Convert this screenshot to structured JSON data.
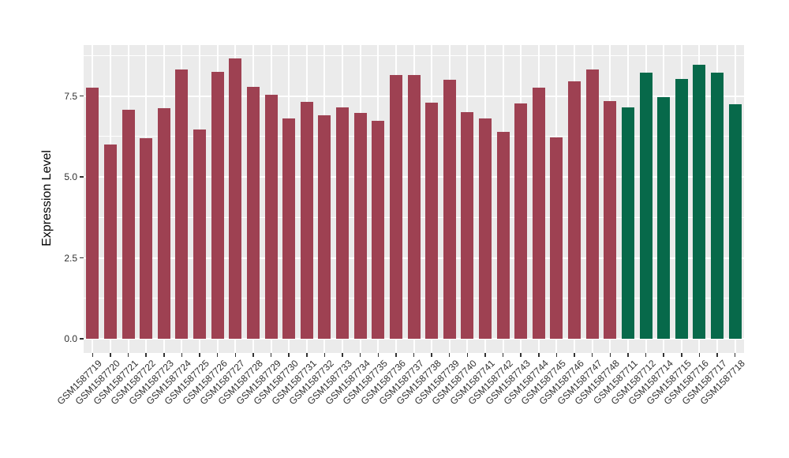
{
  "chart_data": {
    "type": "bar",
    "title": "",
    "xlabel": "",
    "ylabel": "Expression Level",
    "ylim": [
      -0.44,
      9.07
    ],
    "ytick_values": [
      0,
      2.5,
      5,
      7.5
    ],
    "ytick_labels": [
      "0.0",
      "2.5",
      "5.0",
      "7.5"
    ],
    "yminor_values": [
      1.25,
      3.75,
      6.25,
      8.75
    ],
    "grid": "on",
    "legend": "none",
    "x_label_angle_deg": 45,
    "categories": [
      "GSM1587719",
      "GSM1587720",
      "GSM1587721",
      "GSM1587722",
      "GSM1587723",
      "GSM1587724",
      "GSM1587725",
      "GSM1587726",
      "GSM1587727",
      "GSM1587728",
      "GSM1587729",
      "GSM1587730",
      "GSM1587731",
      "GSM1587732",
      "GSM1587733",
      "GSM1587734",
      "GSM1587735",
      "GSM1587736",
      "GSM1587737",
      "GSM1587738",
      "GSM1587739",
      "GSM1587740",
      "GSM1587741",
      "GSM1587742",
      "GSM1587743",
      "GSM1587744",
      "GSM1587745",
      "GSM1587746",
      "GSM1587747",
      "GSM1587748",
      "GSM1587711",
      "GSM1587712",
      "GSM1587714",
      "GSM1587715",
      "GSM1587716",
      "GSM1587717",
      "GSM1587718"
    ],
    "series": [
      {
        "name": "expression-level",
        "values": [
          7.76,
          6.01,
          7.07,
          6.2,
          7.11,
          8.31,
          6.46,
          8.24,
          8.66,
          7.78,
          7.54,
          6.8,
          7.31,
          6.9,
          7.15,
          6.98,
          6.72,
          8.15,
          8.15,
          7.29,
          8.0,
          7.01,
          6.8,
          6.38,
          7.27,
          7.76,
          6.23,
          7.96,
          8.31,
          7.33,
          7.15,
          8.22,
          7.47,
          8.02,
          8.46,
          8.23,
          7.25
        ]
      }
    ],
    "bar_group": [
      "g1",
      "g1",
      "g1",
      "g1",
      "g1",
      "g1",
      "g1",
      "g1",
      "g1",
      "g1",
      "g1",
      "g1",
      "g1",
      "g1",
      "g1",
      "g1",
      "g1",
      "g1",
      "g1",
      "g1",
      "g1",
      "g1",
      "g1",
      "g1",
      "g1",
      "g1",
      "g1",
      "g1",
      "g1",
      "g1",
      "g2",
      "g2",
      "g2",
      "g2",
      "g2",
      "g2",
      "g2"
    ],
    "colors": {
      "g1": "#9E4152",
      "g2": "#07694A",
      "panel_background": "#EBEBEB",
      "grid": "#FFFFFF",
      "axis_text": "#303030",
      "axis_title": "#000000",
      "tick_mark": "#333333"
    }
  }
}
